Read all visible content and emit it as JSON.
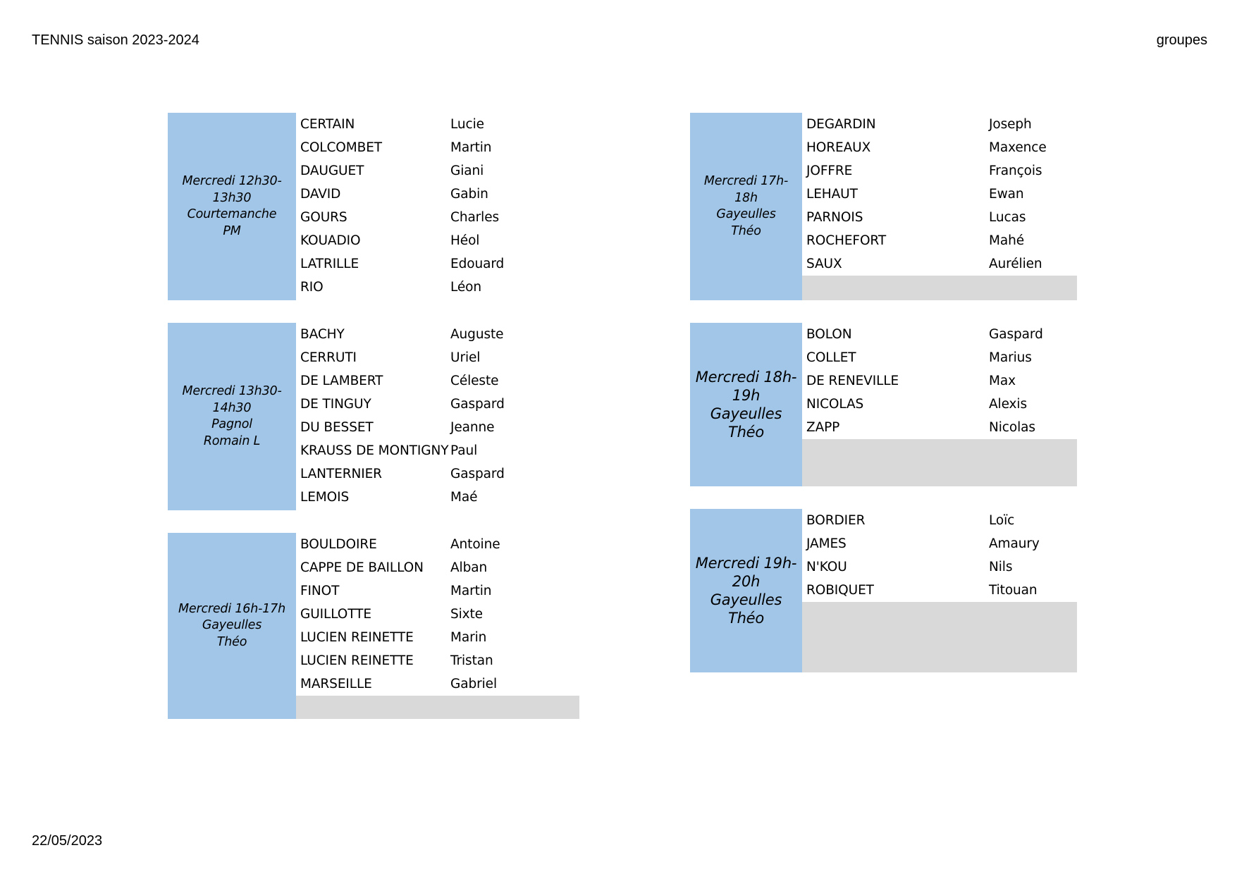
{
  "header": {
    "title": "TENNIS saison 2023-2024",
    "right": "groupes"
  },
  "footer": {
    "date": "22/05/2023"
  },
  "groups": [
    {
      "slot": [
        "Mercredi 12h30-",
        "13h30",
        "Courtemanche",
        "PM"
      ],
      "players": [
        {
          "last": "CERTAIN",
          "first": "Lucie"
        },
        {
          "last": "COLCOMBET",
          "first": "Martin"
        },
        {
          "last": "DAUGUET",
          "first": "Giani"
        },
        {
          "last": "DAVID",
          "first": "Gabin"
        },
        {
          "last": "GOURS",
          "first": "Charles"
        },
        {
          "last": "KOUADIO",
          "first": "Héol"
        },
        {
          "last": "LATRILLE",
          "first": "Edouard"
        },
        {
          "last": "RIO",
          "first": "Léon"
        }
      ]
    },
    {
      "slot": [
        "Mercredi 13h30-",
        "14h30",
        "Pagnol",
        "Romain L"
      ],
      "players": [
        {
          "last": "BACHY",
          "first": "Auguste"
        },
        {
          "last": "CERRUTI",
          "first": "Uriel"
        },
        {
          "last": "DE LAMBERT",
          "first": "Céleste"
        },
        {
          "last": "DE TINGUY",
          "first": "Gaspard"
        },
        {
          "last": "DU BESSET",
          "first": "Jeanne"
        },
        {
          "last": "KRAUSS DE MONTIGNY",
          "first": "Paul"
        },
        {
          "last": "LANTERNIER",
          "first": "Gaspard"
        },
        {
          "last": "LEMOIS",
          "first": "Maé"
        }
      ]
    },
    {
      "slot": [
        "Mercredi 16h-17h",
        "Gayeulles",
        "Théo"
      ],
      "players": [
        {
          "last": "BOULDOIRE",
          "first": "Antoine"
        },
        {
          "last": "CAPPE DE BAILLON",
          "first": "Alban"
        },
        {
          "last": "FINOT",
          "first": "Martin"
        },
        {
          "last": "GUILLOTTE",
          "first": "Sixte"
        },
        {
          "last": "LUCIEN REINETTE",
          "first": "Marin"
        },
        {
          "last": "LUCIEN REINETTE",
          "first": "Tristan"
        },
        {
          "last": "MARSEILLE",
          "first": "Gabriel"
        }
      ]
    },
    {
      "slot": [
        "Mercredi 17h-",
        "18h",
        "Gayeulles",
        "Théo"
      ],
      "players": [
        {
          "last": "DEGARDIN",
          "first": "Joseph"
        },
        {
          "last": "HOREAUX",
          "first": "Maxence"
        },
        {
          "last": "JOFFRE",
          "first": "François"
        },
        {
          "last": "LEHAUT",
          "first": "Ewan"
        },
        {
          "last": "PARNOIS",
          "first": "Lucas"
        },
        {
          "last": "ROCHEFORT",
          "first": "Mahé"
        },
        {
          "last": "SAUX",
          "first": "Aurélien"
        }
      ]
    },
    {
      "slot": [
        "Mercredi 18h-",
        "19h",
        "Gayeulles",
        "Théo"
      ],
      "players": [
        {
          "last": "BOLON",
          "first": "Gaspard"
        },
        {
          "last": "COLLET",
          "first": "Marius"
        },
        {
          "last": "DE RENEVILLE",
          "first": "Max"
        },
        {
          "last": "NICOLAS",
          "first": "Alexis"
        },
        {
          "last": "ZAPP",
          "first": "Nicolas"
        }
      ]
    },
    {
      "slot": [
        "Mercredi 19h-",
        "20h",
        "Gayeulles",
        "Théo"
      ],
      "players": [
        {
          "last": "BORDIER",
          "first": "Loïc"
        },
        {
          "last": "JAMES",
          "first": "Amaury"
        },
        {
          "last": "N'KOU",
          "first": "Nils"
        },
        {
          "last": "ROBIQUET",
          "first": "Titouan"
        }
      ]
    }
  ]
}
